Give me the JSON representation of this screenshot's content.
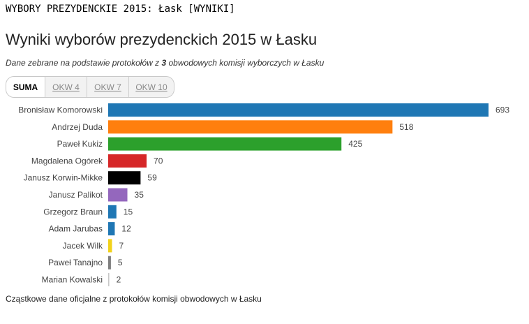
{
  "header": {
    "page_title": "WYBORY PREZYDENCKIE 2015: Łask [WYNIKI]",
    "main_title": "Wyniki wyborów prezydenckich 2015 w Łasku",
    "subtitle_before": "Dane zebrane na podstawie protokołów z ",
    "subtitle_count": "3",
    "subtitle_after": " obwodowych komisji wyborczych w Łasku"
  },
  "tabs": [
    {
      "label": "SUMA",
      "active": true
    },
    {
      "label": "OKW 4",
      "active": false
    },
    {
      "label": "OKW 7",
      "active": false
    },
    {
      "label": "OKW 10",
      "active": false
    }
  ],
  "chart_data": {
    "type": "bar",
    "orientation": "horizontal",
    "categories": [
      "Bronisław Komorowski",
      "Andrzej Duda",
      "Paweł Kukiz",
      "Magdalena Ogórek",
      "Janusz Korwin-Mikke",
      "Janusz Palikot",
      "Grzegorz Braun",
      "Adam Jarubas",
      "Jacek Wilk",
      "Paweł Tanajno",
      "Marian Kowalski"
    ],
    "values": [
      693,
      518,
      425,
      70,
      59,
      35,
      15,
      12,
      7,
      5,
      2
    ],
    "colors": [
      "#1f77b4",
      "#ff7f0e",
      "#2ca02c",
      "#d62728",
      "#000000",
      "#9467bd",
      "#1f77b4",
      "#1f77b4",
      "#f2d21b",
      "#7f7f7f",
      "#c7c7c7"
    ],
    "xlim": [
      0,
      693
    ],
    "grid": false,
    "legend": "none",
    "data_labels": true
  },
  "footer": {
    "text": "Cząstkowe dane oficjalne z protokołów komisji obwodowych w Łasku"
  }
}
